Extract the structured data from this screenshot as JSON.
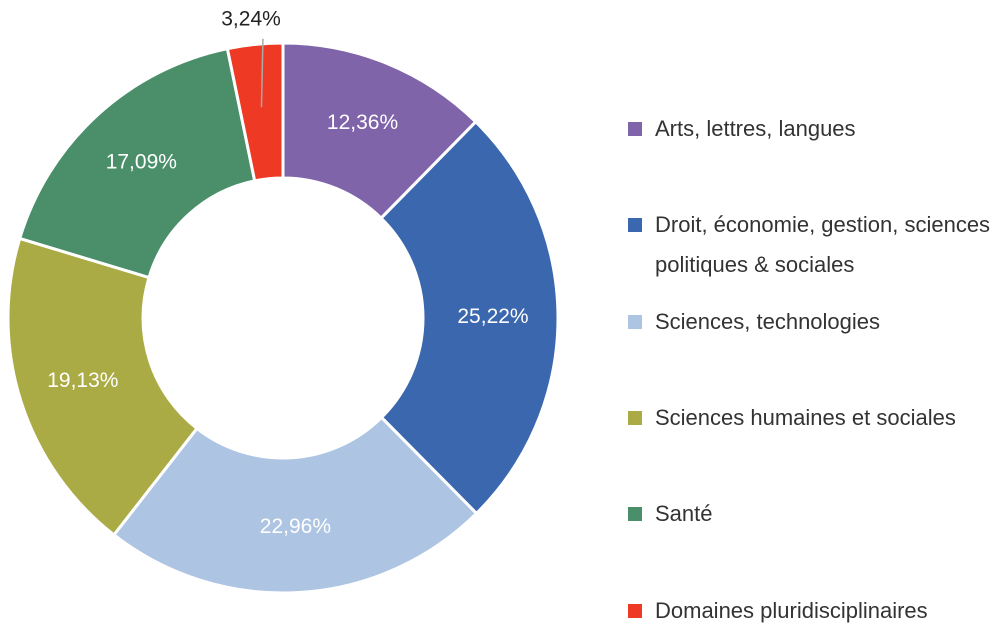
{
  "chart_data": {
    "type": "donut",
    "categories": [
      "Arts, lettres, langues",
      "Droit, économie, gestion, sciences politiques & sociales",
      "Sciences, technologies",
      "Sciences humaines et sociales",
      "Santé",
      "Domaines pluridisciplinaires"
    ],
    "values": [
      12.36,
      25.22,
      22.96,
      19.13,
      17.09,
      3.24
    ],
    "value_labels": [
      "12,36%",
      "25,22%",
      "22,96%",
      "19,13%",
      "17,09%",
      "3,24%"
    ],
    "colors": [
      "#8064aa",
      "#3a67ae",
      "#adc4e2",
      "#abab45",
      "#4a8f69",
      "#ee3a24"
    ],
    "legend": "right"
  }
}
